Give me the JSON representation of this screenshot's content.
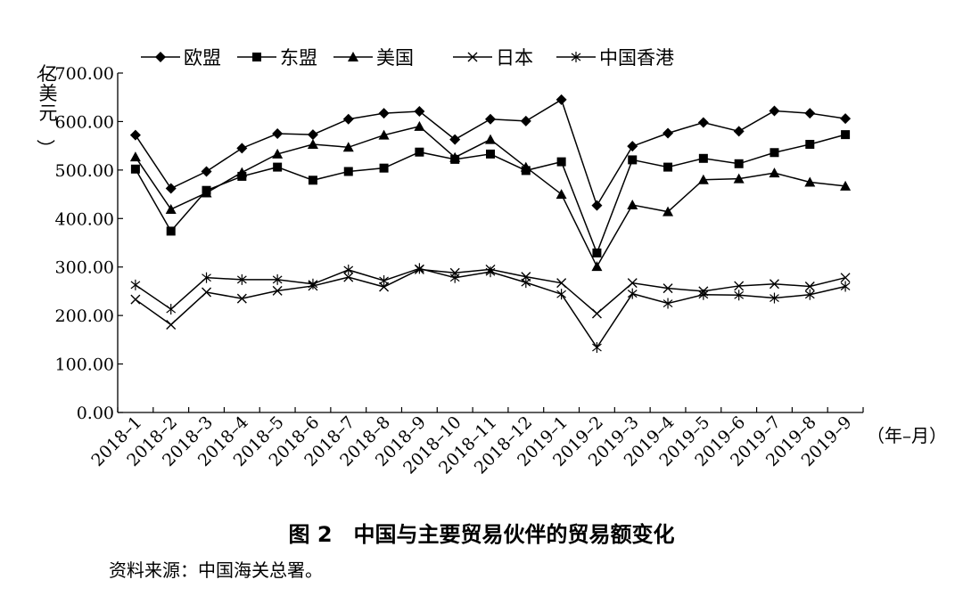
{
  "chart_data": {
    "type": "line",
    "ylabel": "（亿美元）",
    "xlabel": "（年–月）",
    "ylim": [
      0,
      700
    ],
    "y_ticks": [
      "0.00",
      "100.00",
      "200.00",
      "300.00",
      "400.00",
      "500.00",
      "600.00",
      "700.00"
    ],
    "categories": [
      "2018–1",
      "2018–2",
      "2018–3",
      "2018–4",
      "2018–5",
      "2018–6",
      "2018–7",
      "2018–8",
      "2018–9",
      "2018–10",
      "2018–11",
      "2018–12",
      "2019–1",
      "2019–2",
      "2019–3",
      "2019–4",
      "2019–5",
      "2019–6",
      "2019–7",
      "2019–8",
      "2019–9"
    ],
    "legend_position": "top",
    "grid": false,
    "series": [
      {
        "name": "欧盟",
        "marker": "diamond",
        "values": [
          572,
          462,
          497,
          545,
          575,
          573,
          605,
          617,
          621,
          563,
          605,
          601,
          645,
          427,
          549,
          576,
          598,
          580,
          622,
          617,
          606
        ]
      },
      {
        "name": "东盟",
        "marker": "square",
        "values": [
          502,
          374,
          458,
          487,
          506,
          479,
          497,
          504,
          537,
          522,
          533,
          499,
          517,
          329,
          521,
          506,
          524,
          513,
          536,
          553,
          573
        ]
      },
      {
        "name": "美国",
        "marker": "triangle",
        "values": [
          527,
          419,
          453,
          495,
          533,
          553,
          547,
          572,
          590,
          526,
          563,
          506,
          450,
          301,
          428,
          414,
          480,
          482,
          494,
          475,
          467
        ]
      },
      {
        "name": "日本",
        "marker": "x",
        "values": [
          233,
          181,
          248,
          235,
          251,
          261,
          279,
          259,
          295,
          288,
          295,
          280,
          267,
          204,
          267,
          256,
          250,
          261,
          265,
          260,
          278
        ]
      },
      {
        "name": "中国香港",
        "marker": "star",
        "values": [
          263,
          213,
          278,
          274,
          274,
          265,
          294,
          272,
          297,
          278,
          290,
          268,
          244,
          134,
          245,
          225,
          243,
          242,
          236,
          243,
          260
        ]
      }
    ]
  },
  "caption": {
    "figure": "图 2　中国与主要贸易伙伴的贸易额变化",
    "source": "资料来源：中国海关总署。"
  }
}
